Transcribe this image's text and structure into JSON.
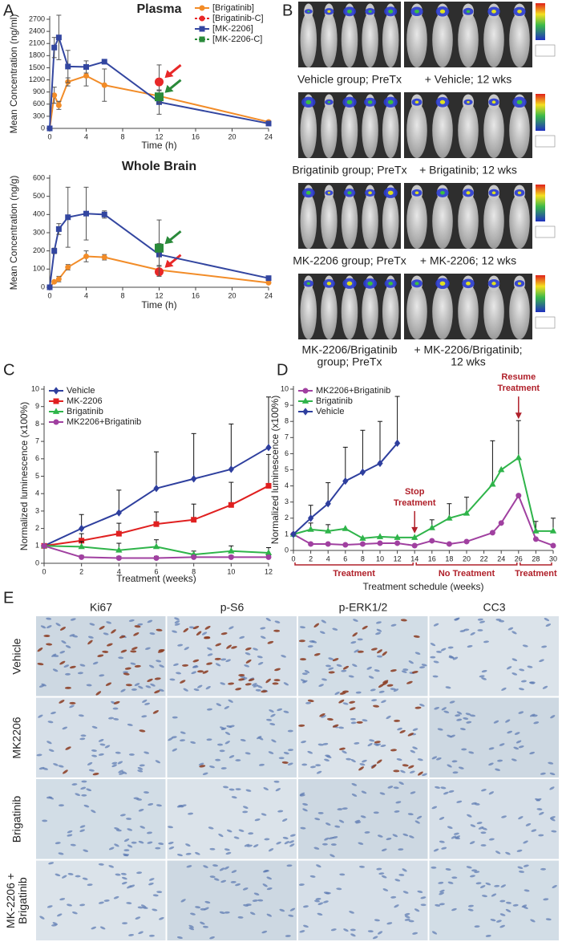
{
  "chart_data": [
    {
      "type": "line",
      "panel_label": "A",
      "title": "Plasma",
      "x_label": "Time (h)",
      "y_label": "Mean Concentration (ng/ml)",
      "xlim": [
        0,
        24
      ],
      "xticks": [
        0,
        4,
        8,
        12,
        16,
        20,
        24
      ],
      "ylim": [
        0,
        2700
      ],
      "yticks": [
        0,
        300,
        600,
        900,
        1200,
        1500,
        1800,
        2100,
        2400,
        2700
      ],
      "legend": "top-right",
      "error_bars": "both",
      "series": [
        {
          "name": "[Brigatinib]",
          "color": "#f28c28",
          "marker": "circle",
          "x": [
            0,
            0.5,
            1,
            2,
            4,
            6,
            12,
            24
          ],
          "values": [
            0,
            820,
            570,
            1150,
            1300,
            1070,
            800,
            160
          ],
          "errors": [
            0,
            200,
            100,
            100,
            250,
            400,
            150,
            30
          ]
        },
        {
          "name": "[Brigatinib-C]",
          "color": "#e82828",
          "marker": "circle",
          "marker_size": 5,
          "dash": true,
          "arrow": true,
          "x": [
            12
          ],
          "values": [
            1150
          ],
          "errors": [
            420
          ]
        },
        {
          "name": "[MK-2206]",
          "color": "#3346a0",
          "marker": "square",
          "x": [
            0,
            0.5,
            1,
            2,
            4,
            6,
            12,
            24
          ],
          "values": [
            0,
            2000,
            2250,
            1530,
            1520,
            1650,
            650,
            120
          ],
          "errors": [
            0,
            250,
            550,
            400,
            150,
            30,
            300,
            30
          ]
        },
        {
          "name": "[MK-2206-C]",
          "color": "#2a8a3a",
          "marker": "square",
          "marker_size": 5,
          "dash": true,
          "arrow": true,
          "x": [
            12
          ],
          "values": [
            780
          ],
          "errors": [
            150
          ]
        }
      ]
    },
    {
      "type": "line",
      "title": "Whole Brain",
      "x_label": "Time (h)",
      "y_label": "Mean Concentration (ng/g)",
      "xlim": [
        0,
        24
      ],
      "xticks": [
        0,
        4,
        8,
        12,
        16,
        20,
        24
      ],
      "ylim": [
        0,
        600
      ],
      "yticks": [
        0,
        100,
        200,
        300,
        400,
        500,
        600
      ],
      "error_bars": "both",
      "series": [
        {
          "color": "#f28c28",
          "marker": "circle",
          "x": [
            0,
            0.5,
            1,
            2,
            4,
            6,
            12,
            24
          ],
          "values": [
            0,
            30,
            45,
            110,
            170,
            165,
            95,
            25
          ],
          "errors": [
            0,
            5,
            15,
            15,
            30,
            15,
            20,
            5
          ]
        },
        {
          "color": "#e82828",
          "marker": "circle",
          "marker_size": 5,
          "arrow": true,
          "x": [
            12
          ],
          "values": [
            85
          ],
          "errors": [
            15
          ]
        },
        {
          "color": "#3346a0",
          "marker": "square",
          "x": [
            0,
            0.5,
            1,
            2,
            4,
            6,
            12,
            24
          ],
          "values": [
            0,
            200,
            320,
            385,
            405,
            400,
            180,
            50
          ],
          "errors": [
            0,
            15,
            30,
            165,
            145,
            20,
            60,
            10
          ]
        },
        {
          "color": "#2a8a3a",
          "marker": "square",
          "marker_size": 5,
          "arrow": true,
          "x": [
            12
          ],
          "values": [
            215
          ],
          "errors": [
            155
          ]
        }
      ]
    },
    {
      "type": "line",
      "panel_label": "C",
      "x_label": "Treatment (weeks)",
      "y_label": "Normalized luminescence (x100%)",
      "xlim": [
        0,
        12
      ],
      "xticks": [
        0,
        2,
        4,
        6,
        8,
        10,
        12
      ],
      "ylim": [
        0,
        10
      ],
      "yticks": [
        0,
        1,
        2,
        3,
        4,
        5,
        6,
        7,
        8,
        9,
        10
      ],
      "legend": "top-left",
      "error_bars": "up",
      "x": [
        0,
        2,
        4,
        6,
        8,
        10,
        12
      ],
      "series": [
        {
          "name": "Vehicle",
          "color": "#2e3f9e",
          "marker": "diamond",
          "values": [
            1,
            2,
            2.9,
            4.3,
            4.85,
            5.4,
            6.65
          ],
          "errors": [
            0,
            0.8,
            1.3,
            2.1,
            2.6,
            2.6,
            2.9
          ]
        },
        {
          "name": "MK-2206",
          "color": "#e02020",
          "marker": "square",
          "values": [
            1,
            1.3,
            1.7,
            2.25,
            2.5,
            3.35,
            4.45
          ],
          "errors": [
            0,
            0.4,
            0.6,
            0.7,
            0.9,
            1.3,
            1.8
          ]
        },
        {
          "name": "Brigatinib",
          "color": "#2fb44a",
          "marker": "triangle",
          "values": [
            1,
            0.95,
            0.75,
            0.95,
            0.5,
            0.7,
            0.6
          ],
          "errors": [
            0,
            0.3,
            0.4,
            0.4,
            0.2,
            0.3,
            0.3
          ]
        },
        {
          "name": "MK2206+Brigatinib",
          "color": "#a040a0",
          "marker": "circle",
          "values": [
            1,
            0.35,
            0.3,
            0.3,
            0.35,
            0.35,
            0.35
          ],
          "errors": [
            0,
            0.1,
            0.1,
            0.1,
            0.1,
            0.1,
            0.1
          ]
        }
      ]
    },
    {
      "type": "line",
      "panel_label": "D",
      "x_label": "Treatment schedule (weeks)",
      "y_label": "Normalized luminescence (x100%)",
      "xlim": [
        0,
        30
      ],
      "xticks": [
        0,
        2,
        4,
        6,
        8,
        10,
        12,
        14,
        16,
        18,
        20,
        22,
        24,
        26,
        28,
        30
      ],
      "ylim": [
        0,
        10
      ],
      "yticks": [
        0,
        1,
        2,
        3,
        4,
        5,
        6,
        7,
        8,
        9,
        10
      ],
      "legend": "top-left",
      "error_bars": "up",
      "series": [
        {
          "name": "MK2206+Brigatinib",
          "color": "#a040a0",
          "marker": "circle",
          "x": [
            0,
            2,
            4,
            6,
            8,
            10,
            12,
            14,
            16,
            18,
            20,
            23,
            24,
            26,
            28,
            30
          ],
          "values": [
            1,
            0.4,
            0.4,
            0.35,
            0.4,
            0.45,
            0.45,
            0.3,
            0.6,
            0.4,
            0.55,
            1.1,
            1.7,
            3.4,
            0.7,
            0.3
          ]
        },
        {
          "name": "Brigatinib",
          "color": "#2fb44a",
          "marker": "triangle",
          "x": [
            0,
            2,
            4,
            6,
            8,
            10,
            12,
            14,
            16,
            18,
            20,
            23,
            24,
            26,
            28,
            30
          ],
          "values": [
            1,
            1.3,
            1.2,
            1.35,
            0.75,
            0.85,
            0.8,
            0.8,
            1.4,
            2,
            2.3,
            4.1,
            5,
            5.75,
            1.2,
            1.2
          ],
          "errors": [
            0,
            0.4,
            0.4,
            0,
            0,
            0,
            0,
            0,
            0.5,
            0.9,
            1,
            2.7,
            0,
            2.3,
            0.6,
            0.8
          ]
        },
        {
          "name": "Vehicle",
          "color": "#2e3f9e",
          "marker": "diamond",
          "x": [
            0,
            2,
            4,
            6,
            8,
            10,
            12
          ],
          "values": [
            1,
            2,
            2.9,
            4.3,
            4.85,
            5.4,
            6.65
          ],
          "errors": [
            0,
            0.8,
            1.3,
            2.1,
            2.6,
            2.6,
            2.9
          ]
        }
      ],
      "annotations": [
        {
          "x": 14,
          "y": 0.9,
          "label": [
            "Stop",
            "Treatment"
          ],
          "color": "#b0202a"
        },
        {
          "x": 26,
          "y": 8,
          "label": [
            "Resume",
            "Treatment"
          ],
          "color": "#b0202a"
        }
      ],
      "periods": [
        {
          "start": 0,
          "end": 14,
          "label": "Treatment",
          "color": "#b0202a"
        },
        {
          "start": 14,
          "end": 26,
          "label": "No Treatment",
          "color": "#b0202a"
        },
        {
          "start": 26,
          "end": 30,
          "label": "Treatment",
          "color": "#b0202a"
        }
      ]
    }
  ],
  "panel_b": {
    "label": "B",
    "rows": [
      {
        "pre": [
          "Vehicle group; PreTx"
        ],
        "post": [
          "+ Vehicle; 12 wks"
        ]
      },
      {
        "pre": [
          "Brigatinib group; PreTx"
        ],
        "post": [
          "+ Brigatinib; 12 wks"
        ]
      },
      {
        "pre": [
          "MK-2206 group; PreTx"
        ],
        "post": [
          "+ MK-2206; 12 wks"
        ]
      },
      {
        "pre": [
          "MK-2206/Brigatinib",
          "group; PreTx"
        ],
        "post": [
          "+ MK-2206/Brigatinib;",
          "12 wks"
        ]
      }
    ]
  },
  "panel_e": {
    "label": "E",
    "columns": [
      "Ki67",
      "p-S6",
      "p-ERK1/2",
      "CC3"
    ],
    "rows": [
      [
        "Vehicle"
      ],
      [
        "MK2206"
      ],
      [
        "Brigatinib"
      ],
      [
        "MK-2206 +",
        "Brigatinib"
      ]
    ]
  }
}
